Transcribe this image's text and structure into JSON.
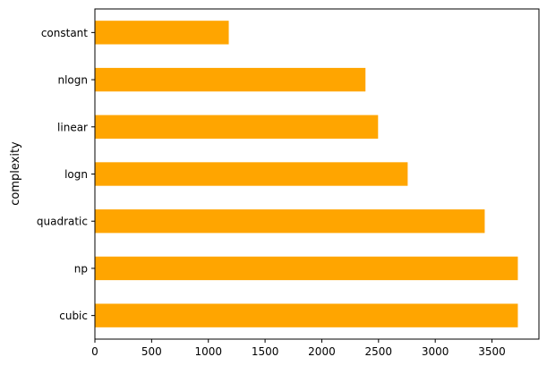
{
  "chart_data": {
    "type": "bar",
    "orientation": "horizontal",
    "categories": [
      "cubic",
      "np",
      "quadratic",
      "logn",
      "linear",
      "nlogn",
      "constant"
    ],
    "values": [
      3728,
      3728,
      3436,
      2757,
      2496,
      2385,
      1180
    ],
    "title": "",
    "xlabel": "",
    "ylabel": "complexity",
    "xlim": [
      0,
      3914
    ],
    "xticks": [
      0,
      500,
      1000,
      1500,
      2000,
      2500,
      3000,
      3500
    ],
    "grid": false,
    "bar_color": "#FFA500"
  }
}
